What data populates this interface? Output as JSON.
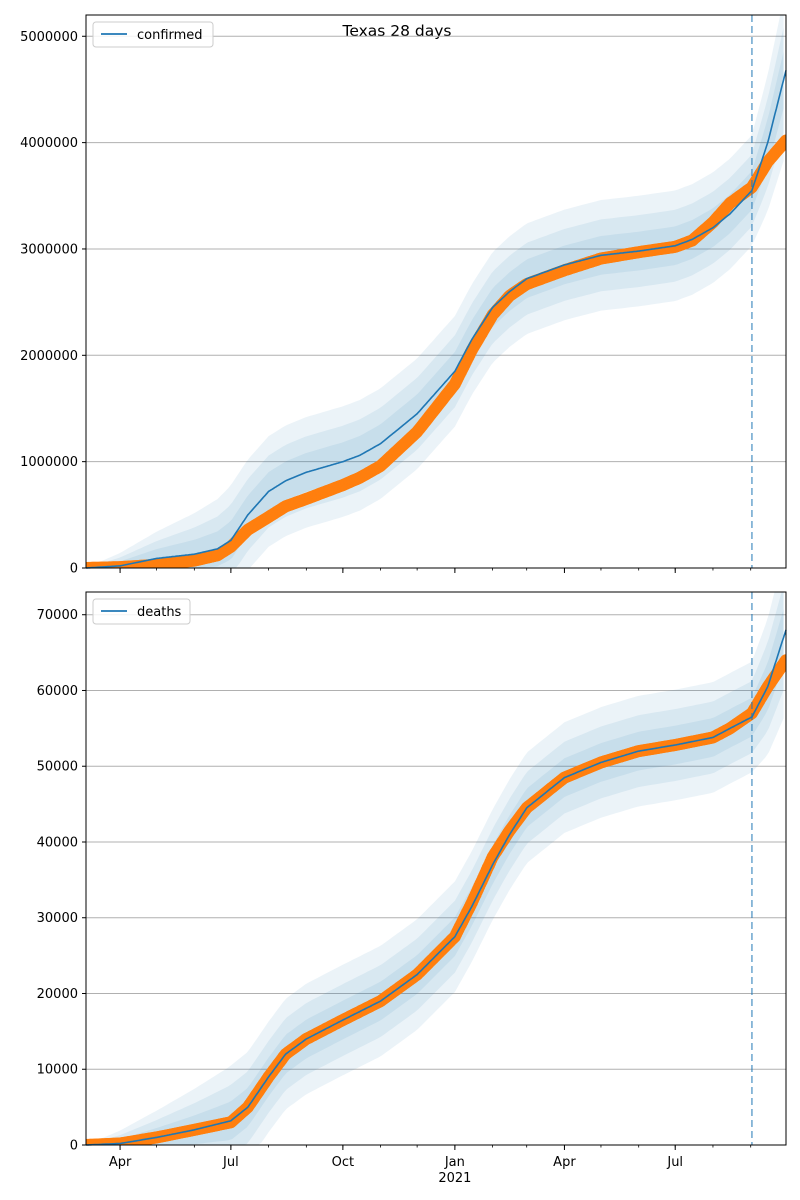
{
  "figure": {
    "title": "Texas 28 days"
  },
  "colors": {
    "model": "#1f77b4",
    "observed": "#ff7f0e",
    "band": "#1f77b4",
    "grid": "#b0b0b0",
    "forecast_line": "#1f77b4"
  },
  "chart_data": [
    {
      "type": "line",
      "legend": [
        "confirmed"
      ],
      "legend_position": "top-left",
      "grid": "horizontal",
      "xlim": [
        "2020-03-04",
        "2021-09-30"
      ],
      "ylim": [
        0,
        5200000
      ],
      "y_ticks": [
        0,
        1000000,
        2000000,
        3000000,
        4000000,
        5000000
      ],
      "x_tick_labels": [],
      "forecast_start": "2021-09-02",
      "series": [
        {
          "name": "confirmed",
          "kind": "model",
          "points": [
            [
              "2020-03-04",
              0
            ],
            [
              "2020-04-01",
              20000
            ],
            [
              "2020-05-01",
              90000
            ],
            [
              "2020-06-01",
              130000
            ],
            [
              "2020-06-20",
              180000
            ],
            [
              "2020-07-01",
              260000
            ],
            [
              "2020-07-15",
              500000
            ],
            [
              "2020-08-01",
              720000
            ],
            [
              "2020-08-15",
              820000
            ],
            [
              "2020-09-01",
              900000
            ],
            [
              "2020-10-01",
              1000000
            ],
            [
              "2020-10-15",
              1060000
            ],
            [
              "2020-11-01",
              1170000
            ],
            [
              "2020-12-01",
              1450000
            ],
            [
              "2021-01-01",
              1850000
            ],
            [
              "2021-01-15",
              2150000
            ],
            [
              "2021-02-01",
              2450000
            ],
            [
              "2021-02-15",
              2600000
            ],
            [
              "2021-03-01",
              2720000
            ],
            [
              "2021-04-01",
              2850000
            ],
            [
              "2021-05-01",
              2940000
            ],
            [
              "2021-06-01",
              2980000
            ],
            [
              "2021-07-01",
              3030000
            ],
            [
              "2021-07-15",
              3090000
            ],
            [
              "2021-08-01",
              3200000
            ],
            [
              "2021-08-15",
              3330000
            ],
            [
              "2021-09-02",
              3550000
            ],
            [
              "2021-09-15",
              4000000
            ],
            [
              "2021-09-30",
              4680000
            ]
          ]
        },
        {
          "name": "observed",
          "kind": "observed",
          "points": [
            [
              "2020-03-04",
              0
            ],
            [
              "2020-04-01",
              8000
            ],
            [
              "2020-05-01",
              30000
            ],
            [
              "2020-06-01",
              70000
            ],
            [
              "2020-06-20",
              120000
            ],
            [
              "2020-07-01",
              200000
            ],
            [
              "2020-07-15",
              360000
            ],
            [
              "2020-08-01",
              480000
            ],
            [
              "2020-08-15",
              580000
            ],
            [
              "2020-09-01",
              650000
            ],
            [
              "2020-10-01",
              780000
            ],
            [
              "2020-10-15",
              850000
            ],
            [
              "2020-11-01",
              960000
            ],
            [
              "2020-12-01",
              1280000
            ],
            [
              "2021-01-01",
              1730000
            ],
            [
              "2021-01-15",
              2050000
            ],
            [
              "2021-02-01",
              2380000
            ],
            [
              "2021-02-15",
              2560000
            ],
            [
              "2021-03-01",
              2670000
            ],
            [
              "2021-04-01",
              2800000
            ],
            [
              "2021-05-01",
              2910000
            ],
            [
              "2021-06-01",
              2970000
            ],
            [
              "2021-07-01",
              3020000
            ],
            [
              "2021-07-15",
              3080000
            ],
            [
              "2021-08-01",
              3250000
            ],
            [
              "2021-08-15",
              3430000
            ],
            [
              "2021-09-02",
              3580000
            ],
            [
              "2021-09-15",
              3820000
            ],
            [
              "2021-09-30",
              4020000
            ]
          ]
        }
      ]
    },
    {
      "type": "line",
      "legend": [
        "deaths"
      ],
      "legend_position": "top-left",
      "grid": "horizontal",
      "xlim": [
        "2020-03-04",
        "2021-09-30"
      ],
      "ylim": [
        0,
        73000
      ],
      "y_ticks": [
        0,
        10000,
        20000,
        30000,
        40000,
        50000,
        60000,
        70000
      ],
      "x_tick_labels": [
        "Apr",
        "Jul",
        "Oct",
        "Jan",
        "Apr",
        "Jul"
      ],
      "x_ticks": [
        "2020-04-01",
        "2020-07-01",
        "2020-10-01",
        "2021-01-01",
        "2021-04-01",
        "2021-07-01"
      ],
      "x_sublabel": "2021",
      "forecast_start": "2021-09-02",
      "series": [
        {
          "name": "deaths",
          "kind": "model",
          "points": [
            [
              "2020-03-04",
              0
            ],
            [
              "2020-04-01",
              200
            ],
            [
              "2020-05-01",
              1000
            ],
            [
              "2020-06-01",
              2000
            ],
            [
              "2020-07-01",
              3200
            ],
            [
              "2020-07-15",
              5000
            ],
            [
              "2020-08-01",
              9000
            ],
            [
              "2020-08-15",
              12000
            ],
            [
              "2020-09-01",
              14000
            ],
            [
              "2020-10-01",
              16500
            ],
            [
              "2020-11-01",
              19000
            ],
            [
              "2020-12-01",
              22500
            ],
            [
              "2021-01-01",
              27500
            ],
            [
              "2021-01-15",
              31500
            ],
            [
              "2021-02-01",
              37000
            ],
            [
              "2021-02-15",
              41000
            ],
            [
              "2021-03-01",
              44500
            ],
            [
              "2021-04-01",
              48500
            ],
            [
              "2021-05-01",
              50500
            ],
            [
              "2021-06-01",
              52000
            ],
            [
              "2021-07-01",
              52800
            ],
            [
              "2021-08-01",
              53800
            ],
            [
              "2021-08-15",
              55000
            ],
            [
              "2021-09-02",
              56500
            ],
            [
              "2021-09-15",
              60500
            ],
            [
              "2021-09-30",
              68000
            ]
          ]
        },
        {
          "name": "observed",
          "kind": "observed",
          "points": [
            [
              "2020-03-04",
              0
            ],
            [
              "2020-04-01",
              200
            ],
            [
              "2020-05-01",
              1000
            ],
            [
              "2020-06-01",
              2000
            ],
            [
              "2020-07-01",
              3000
            ],
            [
              "2020-07-15",
              5000
            ],
            [
              "2020-08-01",
              9000
            ],
            [
              "2020-08-15",
              12000
            ],
            [
              "2020-09-01",
              14000
            ],
            [
              "2020-10-01",
              16500
            ],
            [
              "2020-11-01",
              19000
            ],
            [
              "2020-12-01",
              22500
            ],
            [
              "2021-01-01",
              27500
            ],
            [
              "2021-01-15",
              32000
            ],
            [
              "2021-02-01",
              38000
            ],
            [
              "2021-02-15",
              41500
            ],
            [
              "2021-03-01",
              44500
            ],
            [
              "2021-04-01",
              48500
            ],
            [
              "2021-05-01",
              50500
            ],
            [
              "2021-06-01",
              52000
            ],
            [
              "2021-07-01",
              52800
            ],
            [
              "2021-08-01",
              53800
            ],
            [
              "2021-08-15",
              55000
            ],
            [
              "2021-09-02",
              57000
            ],
            [
              "2021-09-15",
              60500
            ],
            [
              "2021-09-30",
              64000
            ]
          ]
        }
      ]
    }
  ]
}
